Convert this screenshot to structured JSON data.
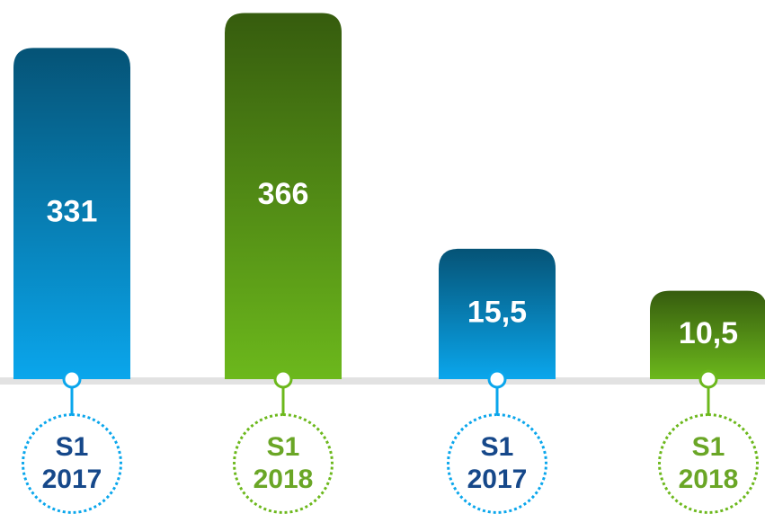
{
  "chart_data": [
    {
      "type": "bar",
      "categories": [
        "S1 2017",
        "S1 2018"
      ],
      "values": [
        331,
        366
      ],
      "colors": [
        "#0aa6ec",
        "#6cb81c"
      ],
      "label_colors": [
        "#16488a",
        "#6aa626"
      ],
      "ylim": [
        0,
        370
      ]
    },
    {
      "type": "bar",
      "categories": [
        "S1 2017",
        "S1 2018"
      ],
      "values": [
        15.5,
        10.5
      ],
      "value_labels": [
        "15,5",
        "10,5"
      ],
      "colors": [
        "#0aa6ec",
        "#6cb81c"
      ],
      "label_colors": [
        "#16488a",
        "#6aa626"
      ],
      "ylim": [
        0,
        44
      ]
    }
  ]
}
